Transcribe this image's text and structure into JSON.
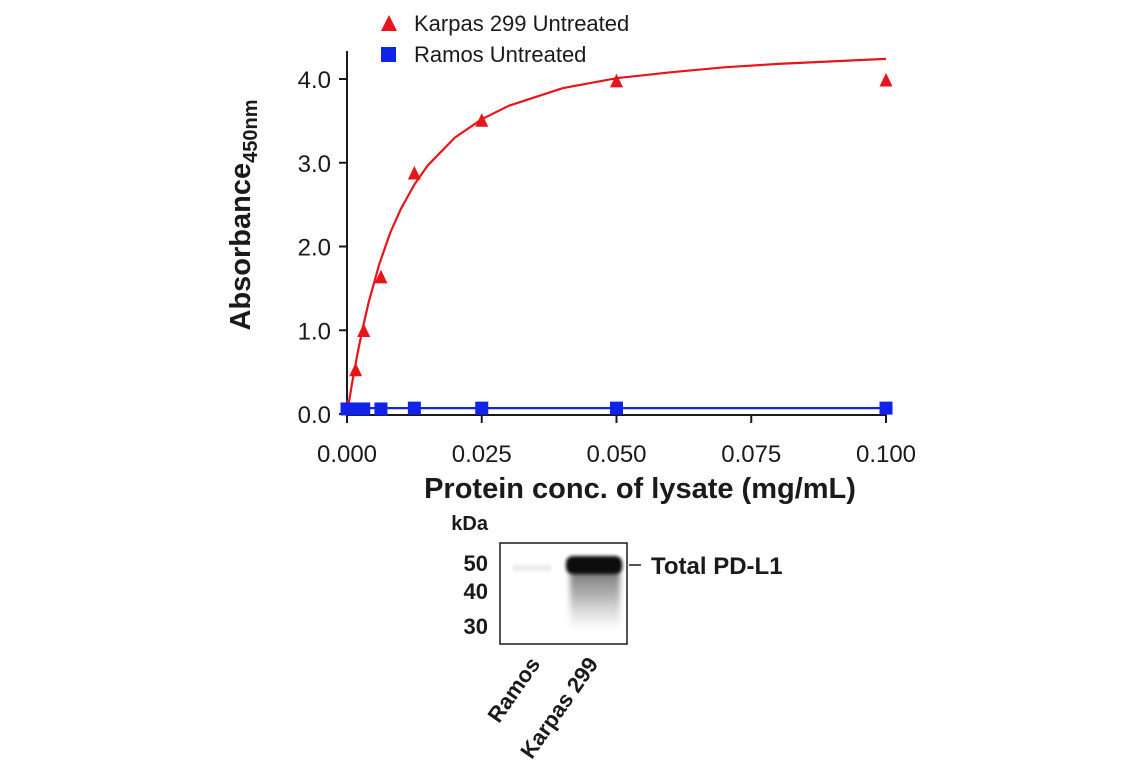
{
  "chart_data": {
    "type": "scatter",
    "xlabel": "Protein conc. of lysate (mg/mL)",
    "ylabel": "Absorbance",
    "ylabel_sub": "450nm",
    "xlim": [
      0,
      0.1
    ],
    "ylim": [
      0,
      4.0
    ],
    "x_ticks": [
      "0.000",
      "0.025",
      "0.050",
      "0.075",
      "0.100"
    ],
    "y_ticks": [
      "0.0",
      "1.0",
      "2.0",
      "3.0",
      "4.0"
    ],
    "grid": false,
    "legend_position": "top",
    "series": [
      {
        "name": "Karpas 299 Untreated",
        "color": "#e8141b",
        "marker": "triangle",
        "x": [
          0.0,
          0.0016,
          0.0031,
          0.0063,
          0.0125,
          0.025,
          0.05,
          0.1
        ],
        "y": [
          0.08,
          0.52,
          0.99,
          1.63,
          2.87,
          3.5,
          3.97,
          3.98
        ],
        "fit": [
          [
            0.0,
            0.0
          ],
          [
            0.001,
            0.39
          ],
          [
            0.002,
            0.74
          ],
          [
            0.003,
            1.05
          ],
          [
            0.004,
            1.33
          ],
          [
            0.006,
            1.79
          ],
          [
            0.008,
            2.16
          ],
          [
            0.01,
            2.45
          ],
          [
            0.0125,
            2.74
          ],
          [
            0.015,
            2.97
          ],
          [
            0.02,
            3.3
          ],
          [
            0.025,
            3.52
          ],
          [
            0.03,
            3.68
          ],
          [
            0.04,
            3.89
          ],
          [
            0.05,
            4.01
          ],
          [
            0.06,
            4.08
          ],
          [
            0.07,
            4.14
          ],
          [
            0.08,
            4.18
          ],
          [
            0.09,
            4.21
          ],
          [
            0.1,
            4.24
          ]
        ]
      },
      {
        "name": "Ramos Untreated",
        "color": "#1023e8",
        "marker": "square",
        "x": [
          0.0,
          0.0016,
          0.0031,
          0.0063,
          0.0125,
          0.025,
          0.05,
          0.1
        ],
        "y": [
          0.06,
          0.06,
          0.06,
          0.06,
          0.07,
          0.07,
          0.07,
          0.07
        ],
        "fit": [
          [
            0.0,
            0.07
          ],
          [
            0.1,
            0.07
          ]
        ]
      }
    ]
  },
  "blot": {
    "units_label": "kDa",
    "mw_markers": [
      "50",
      "40",
      "30"
    ],
    "band_label": "Total PD-L1",
    "lanes": [
      "Ramos",
      "Karpas 299"
    ]
  }
}
